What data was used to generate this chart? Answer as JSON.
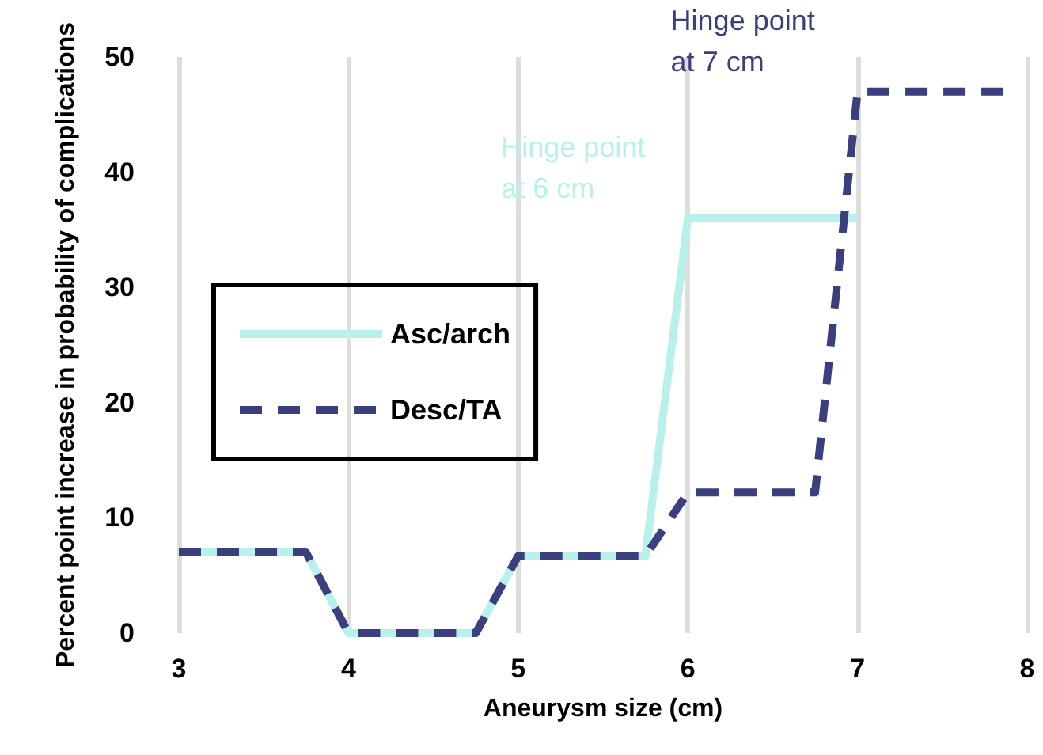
{
  "chart_data": {
    "type": "line",
    "xlabel": "Aneurysm size (cm)",
    "ylabel": "Percent point increase in probability of complications",
    "xlim": [
      3,
      8
    ],
    "xticks": [
      3,
      4,
      5,
      6,
      7,
      8
    ],
    "ylim": [
      0,
      50
    ],
    "yticks": [
      0,
      10,
      20,
      30,
      40,
      50
    ],
    "grid": "x",
    "legend": "left",
    "marker": "none",
    "series": [
      {
        "name": "Asc/arch",
        "color": "#b8f0ec",
        "line_style": "solid",
        "x": [
          3,
          3.75,
          4,
          4.75,
          5,
          5.75,
          6,
          7
        ],
        "values": [
          7,
          7,
          0,
          0,
          6.7,
          6.7,
          36,
          36
        ]
      },
      {
        "name": "Desc/TA",
        "color": "#3a3f7e",
        "line_style": "dashed",
        "x": [
          3,
          3.75,
          4,
          4.75,
          5,
          5.75,
          6,
          6.75,
          7,
          7.9
        ],
        "values": [
          7,
          7,
          0,
          0,
          6.7,
          6.7,
          12.2,
          12.2,
          47,
          47
        ]
      }
    ],
    "annotations": [
      {
        "text": "Hinge point at 6 cm",
        "x": 6,
        "y": 36
      },
      {
        "text": "Hinge point at 7 cm",
        "x": 7,
        "y": 47
      }
    ]
  }
}
